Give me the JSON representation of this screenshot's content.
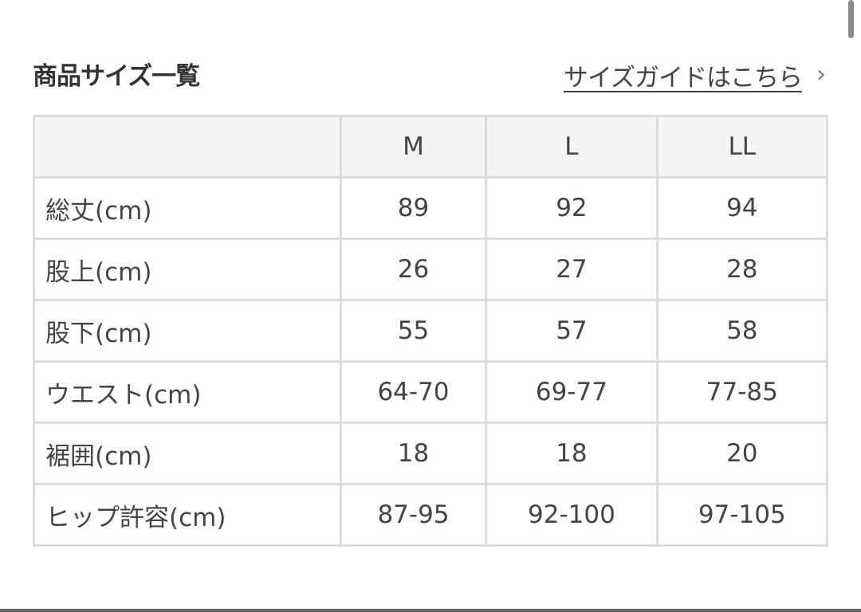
{
  "header": {
    "title": "商品サイズ一覧",
    "guide_link": "サイズガイドはこちら",
    "chevron": "›"
  },
  "table": {
    "columns": [
      "",
      "M",
      "L",
      "LL"
    ],
    "rows": [
      {
        "label": "総丈(cm)",
        "values": [
          "89",
          "92",
          "94"
        ]
      },
      {
        "label": "股上(cm)",
        "values": [
          "26",
          "27",
          "28"
        ]
      },
      {
        "label": "股下(cm)",
        "values": [
          "55",
          "57",
          "58"
        ]
      },
      {
        "label": "ウエスト(cm)",
        "values": [
          "64-70",
          "69-77",
          "77-85"
        ]
      },
      {
        "label": "裾囲(cm)",
        "values": [
          "18",
          "18",
          "20"
        ]
      },
      {
        "label": "ヒップ許容(cm)",
        "values": [
          "87-95",
          "92-100",
          "97-105"
        ]
      }
    ]
  }
}
